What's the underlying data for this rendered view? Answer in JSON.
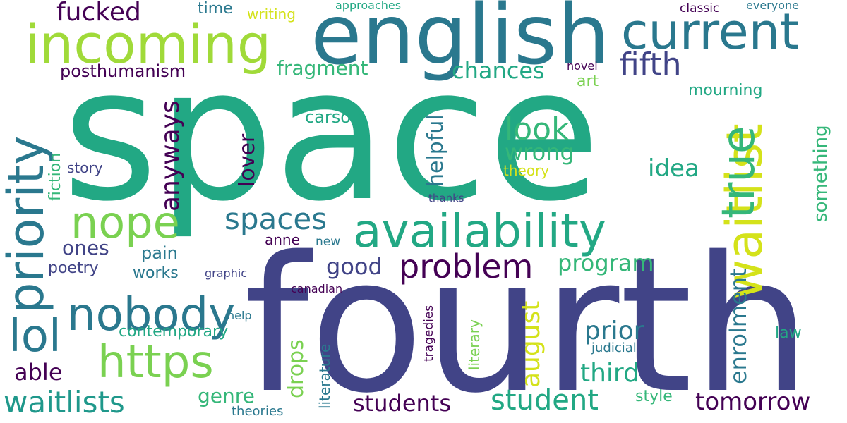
{
  "palette": {
    "purple": "#440154",
    "indigo": "#414487",
    "blue": "#2a788e",
    "teal": "#22a884",
    "green": "#7ad151",
    "yellow": "#d4e21a"
  },
  "words": [
    {
      "text": "space",
      "color": "#22a884"
    },
    {
      "text": "fourth",
      "color": "#414487"
    },
    {
      "text": "english",
      "color": "#2a788e"
    },
    {
      "text": "incoming",
      "color": "#a0da39"
    },
    {
      "text": "current",
      "color": "#2a788e"
    },
    {
      "text": "availability",
      "color": "#22a884"
    },
    {
      "text": "waitlist",
      "color": "#d4e21a"
    },
    {
      "text": "priority",
      "color": "#2a788e"
    },
    {
      "text": "nobody",
      "color": "#2a788e"
    },
    {
      "text": "https",
      "color": "#7ad151"
    },
    {
      "text": "nope",
      "color": "#7ad151"
    },
    {
      "text": "true",
      "color": "#35b779"
    },
    {
      "text": "problem",
      "color": "#440154"
    },
    {
      "text": "lol",
      "color": "#2a788e"
    },
    {
      "text": "student",
      "color": "#22a884"
    },
    {
      "text": "waitlists",
      "color": "#1f988b"
    },
    {
      "text": "spaces",
      "color": "#2a788e"
    },
    {
      "text": "fifth",
      "color": "#414487"
    },
    {
      "text": "look",
      "color": "#35b779"
    },
    {
      "text": "tomorrow",
      "color": "#440154"
    },
    {
      "text": "students",
      "color": "#440154"
    },
    {
      "text": "program",
      "color": "#35b779"
    },
    {
      "text": "fucked",
      "color": "#440154"
    },
    {
      "text": "august",
      "color": "#d4e21a"
    },
    {
      "text": "prior",
      "color": "#2a788e"
    },
    {
      "text": "third",
      "color": "#22a884"
    },
    {
      "text": "anyways",
      "color": "#440154"
    },
    {
      "text": "wrong",
      "color": "#35b779"
    },
    {
      "text": "chances",
      "color": "#22a884"
    },
    {
      "text": "enrolment",
      "color": "#2a788e"
    },
    {
      "text": "good",
      "color": "#414487"
    },
    {
      "text": "idea",
      "color": "#22a884"
    },
    {
      "text": "fragment",
      "color": "#35b779"
    },
    {
      "text": "something",
      "color": "#35b779"
    },
    {
      "text": "drops",
      "color": "#7ad151"
    },
    {
      "text": "helpful",
      "color": "#2a788e"
    },
    {
      "text": "lover",
      "color": "#440154"
    },
    {
      "text": "posthumanism",
      "color": "#440154"
    },
    {
      "text": "able",
      "color": "#440154"
    },
    {
      "text": "ones",
      "color": "#414487"
    },
    {
      "text": "genre",
      "color": "#35b779"
    },
    {
      "text": "mourning",
      "color": "#22a884"
    },
    {
      "text": "carson",
      "color": "#22a884"
    },
    {
      "text": "contemporary",
      "color": "#22a884"
    },
    {
      "text": "pain",
      "color": "#2a788e"
    },
    {
      "text": "time",
      "color": "#2a788e"
    },
    {
      "text": "literature",
      "color": "#2a788e"
    },
    {
      "text": "works",
      "color": "#2a788e"
    },
    {
      "text": "poetry",
      "color": "#414487"
    },
    {
      "text": "story",
      "color": "#414487"
    },
    {
      "text": "fiction",
      "color": "#35b779"
    },
    {
      "text": "law",
      "color": "#22a884"
    },
    {
      "text": "literary",
      "color": "#7ad151"
    },
    {
      "text": "style",
      "color": "#35b779"
    },
    {
      "text": "theory",
      "color": "#d4e21a"
    },
    {
      "text": "anne",
      "color": "#440154"
    },
    {
      "text": "writing",
      "color": "#d4e21a"
    },
    {
      "text": "classic",
      "color": "#440154"
    },
    {
      "text": "theories",
      "color": "#2a788e"
    },
    {
      "text": "judicial",
      "color": "#2a788e"
    },
    {
      "text": "tragedies",
      "color": "#440154"
    },
    {
      "text": "art",
      "color": "#7ad151"
    },
    {
      "text": "approaches",
      "color": "#22a884"
    },
    {
      "text": "everyone",
      "color": "#2a788e"
    },
    {
      "text": "novel",
      "color": "#440154"
    },
    {
      "text": "new",
      "color": "#2a788e"
    },
    {
      "text": "canadian",
      "color": "#440154"
    },
    {
      "text": "graphic",
      "color": "#414487"
    },
    {
      "text": "help",
      "color": "#2a788e"
    },
    {
      "text": "thanks",
      "color": "#414487"
    }
  ]
}
